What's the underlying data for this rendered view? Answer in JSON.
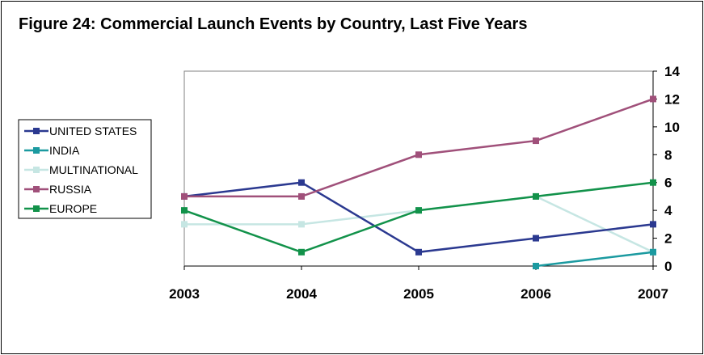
{
  "title": "Figure 24: Commercial Launch Events by Country, Last Five Years",
  "chart_data": {
    "type": "line",
    "title": "Figure 24: Commercial Launch Events by Country, Last Five Years",
    "categories": [
      "2003",
      "2004",
      "2005",
      "2006",
      "2007"
    ],
    "ylim": [
      0,
      14
    ],
    "yticks": [
      "0",
      "2",
      "4",
      "6",
      "8",
      "10",
      "12",
      "14"
    ],
    "y_axis_side": "right",
    "grid": false,
    "legend_position": "left",
    "series": [
      {
        "name": "UNITED STATES",
        "color": "#2b3990",
        "values": [
          5,
          6,
          1,
          2,
          3
        ]
      },
      {
        "name": "INDIA",
        "color": "#1b9aa0",
        "values": [
          null,
          null,
          null,
          0,
          1
        ]
      },
      {
        "name": "MULTINATIONAL",
        "color": "#c6e6e3",
        "values": [
          3,
          3,
          4,
          5,
          1
        ]
      },
      {
        "name": "RUSSIA",
        "color": "#a0507a",
        "values": [
          5,
          5,
          8,
          9,
          12
        ]
      },
      {
        "name": "EUROPE",
        "color": "#12924a",
        "values": [
          4,
          1,
          4,
          5,
          6
        ]
      }
    ]
  }
}
